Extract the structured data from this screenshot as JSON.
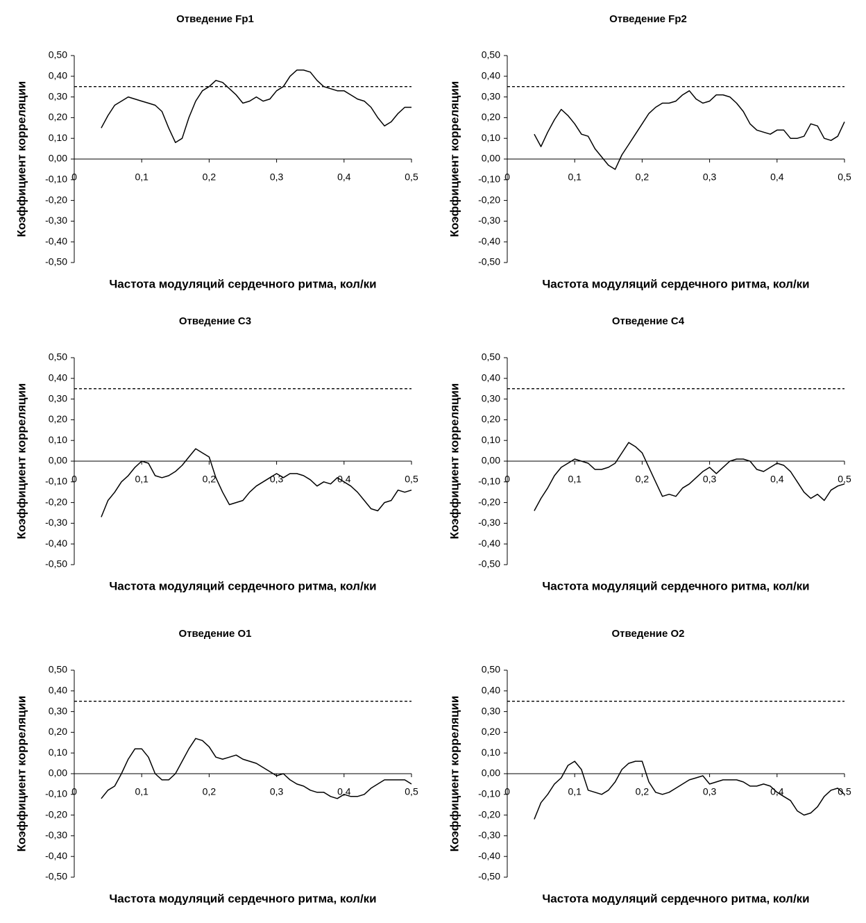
{
  "chart_data": [
    {
      "type": "line",
      "title": "Отведение Fp1",
      "xlabel": "Частота модуляций сердечного ритма, кол/ки",
      "ylabel": "Коэффициент корреляции",
      "color": "#000000",
      "reference_line": 0.35,
      "x": [
        0.04,
        0.05,
        0.06,
        0.07,
        0.08,
        0.09,
        0.1,
        0.11,
        0.12,
        0.13,
        0.14,
        0.15,
        0.16,
        0.17,
        0.18,
        0.19,
        0.2,
        0.21,
        0.22,
        0.23,
        0.24,
        0.25,
        0.26,
        0.27,
        0.28,
        0.29,
        0.3,
        0.31,
        0.32,
        0.33,
        0.34,
        0.35,
        0.36,
        0.37,
        0.38,
        0.39,
        0.4,
        0.41,
        0.42,
        0.43,
        0.44,
        0.45,
        0.46,
        0.47,
        0.48,
        0.49,
        0.5
      ],
      "values": [
        0.15,
        0.21,
        0.26,
        0.28,
        0.3,
        0.29,
        0.28,
        0.27,
        0.26,
        0.23,
        0.15,
        0.08,
        0.1,
        0.2,
        0.28,
        0.33,
        0.35,
        0.38,
        0.37,
        0.34,
        0.31,
        0.27,
        0.28,
        0.3,
        0.28,
        0.29,
        0.33,
        0.35,
        0.4,
        0.43,
        0.43,
        0.42,
        0.38,
        0.35,
        0.34,
        0.33,
        0.33,
        0.31,
        0.29,
        0.28,
        0.25,
        0.2,
        0.16,
        0.18,
        0.22,
        0.25,
        0.25
      ],
      "xlim": [
        0,
        0.5
      ],
      "ylim": [
        -0.5,
        0.5
      ],
      "xticks": [
        0,
        {
          "value": 0.1,
          "label": "0,1"
        },
        {
          "value": 0.2,
          "label": "0,2"
        },
        {
          "value": 0.3,
          "label": "0,3"
        },
        {
          "value": 0.4,
          "label": "0,4"
        },
        {
          "value": 0.5,
          "label": "0,5"
        }
      ],
      "yticks": [
        {
          "value": 0.5,
          "label": "0,50"
        },
        {
          "value": 0.4,
          "label": "0,40"
        },
        {
          "value": 0.3,
          "label": "0,30"
        },
        {
          "value": 0.2,
          "label": "0,20"
        },
        {
          "value": 0.1,
          "label": "0,10"
        },
        {
          "value": 0,
          "label": "0,00"
        },
        {
          "value": -0.1,
          "label": "-0,10"
        },
        {
          "value": -0.2,
          "label": "-0,20"
        },
        {
          "value": -0.3,
          "label": "-0,30"
        },
        {
          "value": -0.4,
          "label": "-0,40"
        },
        {
          "value": -0.5,
          "label": "-0,50"
        }
      ]
    },
    {
      "type": "line",
      "title": "Отведение Fp2",
      "xlabel": "Частота модуляций сердечного ритма, кол/ки",
      "ylabel": "Коэффициент корреляции",
      "color": "#000000",
      "reference_line": 0.35,
      "x": [
        0.04,
        0.05,
        0.06,
        0.07,
        0.08,
        0.09,
        0.1,
        0.11,
        0.12,
        0.13,
        0.14,
        0.15,
        0.16,
        0.17,
        0.18,
        0.19,
        0.2,
        0.21,
        0.22,
        0.23,
        0.24,
        0.25,
        0.26,
        0.27,
        0.28,
        0.29,
        0.3,
        0.31,
        0.32,
        0.33,
        0.34,
        0.35,
        0.36,
        0.37,
        0.38,
        0.39,
        0.4,
        0.41,
        0.42,
        0.43,
        0.44,
        0.45,
        0.46,
        0.47,
        0.48,
        0.49,
        0.5
      ],
      "values": [
        0.12,
        0.06,
        0.13,
        0.19,
        0.24,
        0.21,
        0.17,
        0.12,
        0.11,
        0.05,
        0.01,
        -0.03,
        -0.05,
        0.02,
        0.07,
        0.12,
        0.17,
        0.22,
        0.25,
        0.27,
        0.27,
        0.28,
        0.31,
        0.33,
        0.29,
        0.27,
        0.28,
        0.31,
        0.31,
        0.3,
        0.27,
        0.23,
        0.17,
        0.14,
        0.13,
        0.12,
        0.14,
        0.14,
        0.1,
        0.1,
        0.11,
        0.17,
        0.16,
        0.1,
        0.09,
        0.11,
        0.18
      ],
      "xlim": [
        0,
        0.5
      ],
      "ylim": [
        -0.5,
        0.5
      ],
      "xticks": [
        0,
        {
          "value": 0.1,
          "label": "0,1"
        },
        {
          "value": 0.2,
          "label": "0,2"
        },
        {
          "value": 0.3,
          "label": "0,3"
        },
        {
          "value": 0.4,
          "label": "0,4"
        },
        {
          "value": 0.5,
          "label": "0,5"
        }
      ],
      "yticks": [
        {
          "value": 0.5,
          "label": "0,50"
        },
        {
          "value": 0.4,
          "label": "0,40"
        },
        {
          "value": 0.3,
          "label": "0,30"
        },
        {
          "value": 0.2,
          "label": "0,20"
        },
        {
          "value": 0.1,
          "label": "0,10"
        },
        {
          "value": 0,
          "label": "0,00"
        },
        {
          "value": -0.1,
          "label": "-0,10"
        },
        {
          "value": -0.2,
          "label": "-0,20"
        },
        {
          "value": -0.3,
          "label": "-0,30"
        },
        {
          "value": -0.4,
          "label": "-0,40"
        },
        {
          "value": -0.5,
          "label": "-0,50"
        }
      ]
    },
    {
      "type": "line",
      "title": "Отведение С3",
      "xlabel": "Частота модуляций сердечного ритма, кол/ки",
      "ylabel": "Коэффициент корреляции",
      "color": "#000000",
      "reference_line": 0.35,
      "x": [
        0.04,
        0.05,
        0.06,
        0.07,
        0.08,
        0.09,
        0.1,
        0.11,
        0.12,
        0.13,
        0.14,
        0.15,
        0.16,
        0.17,
        0.18,
        0.19,
        0.2,
        0.21,
        0.22,
        0.23,
        0.24,
        0.25,
        0.26,
        0.27,
        0.28,
        0.29,
        0.3,
        0.31,
        0.32,
        0.33,
        0.34,
        0.35,
        0.36,
        0.37,
        0.38,
        0.39,
        0.4,
        0.41,
        0.42,
        0.43,
        0.44,
        0.45,
        0.46,
        0.47,
        0.48,
        0.49,
        0.5
      ],
      "values": [
        -0.27,
        -0.19,
        -0.15,
        -0.1,
        -0.07,
        -0.03,
        0.0,
        -0.01,
        -0.07,
        -0.08,
        -0.07,
        -0.05,
        -0.02,
        0.02,
        0.06,
        0.04,
        0.02,
        -0.08,
        -0.15,
        -0.21,
        -0.2,
        -0.19,
        -0.15,
        -0.12,
        -0.1,
        -0.08,
        -0.06,
        -0.08,
        -0.06,
        -0.06,
        -0.07,
        -0.09,
        -0.12,
        -0.1,
        -0.11,
        -0.08,
        -0.1,
        -0.12,
        -0.15,
        -0.19,
        -0.23,
        -0.24,
        -0.2,
        -0.19,
        -0.14,
        -0.15,
        -0.14
      ],
      "xlim": [
        0,
        0.5
      ],
      "ylim": [
        -0.5,
        0.5
      ],
      "xticks": [
        0,
        {
          "value": 0.1,
          "label": "0,1"
        },
        {
          "value": 0.2,
          "label": "0,2"
        },
        {
          "value": 0.3,
          "label": "0,3"
        },
        {
          "value": 0.4,
          "label": "0,4"
        },
        {
          "value": 0.5,
          "label": "0,5"
        }
      ],
      "yticks": [
        {
          "value": 0.5,
          "label": "0,50"
        },
        {
          "value": 0.4,
          "label": "0,40"
        },
        {
          "value": 0.3,
          "label": "0,30"
        },
        {
          "value": 0.2,
          "label": "0,20"
        },
        {
          "value": 0.1,
          "label": "0,10"
        },
        {
          "value": 0,
          "label": "0,00"
        },
        {
          "value": -0.1,
          "label": "-0,10"
        },
        {
          "value": -0.2,
          "label": "-0,20"
        },
        {
          "value": -0.3,
          "label": "-0,30"
        },
        {
          "value": -0.4,
          "label": "-0,40"
        },
        {
          "value": -0.5,
          "label": "-0,50"
        }
      ]
    },
    {
      "type": "line",
      "title": "Отведение С4",
      "xlabel": "Частота модуляций сердечного ритма, кол/ки",
      "ylabel": "Коэффициент корреляции",
      "color": "#000000",
      "reference_line": 0.35,
      "x": [
        0.04,
        0.05,
        0.06,
        0.07,
        0.08,
        0.09,
        0.1,
        0.11,
        0.12,
        0.13,
        0.14,
        0.15,
        0.16,
        0.17,
        0.18,
        0.19,
        0.2,
        0.21,
        0.22,
        0.23,
        0.24,
        0.25,
        0.26,
        0.27,
        0.28,
        0.29,
        0.3,
        0.31,
        0.32,
        0.33,
        0.34,
        0.35,
        0.36,
        0.37,
        0.38,
        0.39,
        0.4,
        0.41,
        0.42,
        0.43,
        0.44,
        0.45,
        0.46,
        0.47,
        0.48,
        0.49,
        0.5
      ],
      "values": [
        -0.24,
        -0.18,
        -0.13,
        -0.07,
        -0.03,
        -0.01,
        0.01,
        0.0,
        -0.01,
        -0.04,
        -0.04,
        -0.03,
        -0.01,
        0.04,
        0.09,
        0.07,
        0.04,
        -0.03,
        -0.1,
        -0.17,
        -0.16,
        -0.17,
        -0.13,
        -0.11,
        -0.08,
        -0.05,
        -0.03,
        -0.06,
        -0.03,
        0.0,
        0.01,
        0.01,
        0.0,
        -0.04,
        -0.05,
        -0.03,
        -0.01,
        -0.02,
        -0.05,
        -0.1,
        -0.15,
        -0.18,
        -0.16,
        -0.19,
        -0.14,
        -0.12,
        -0.11
      ],
      "xlim": [
        0,
        0.5
      ],
      "ylim": [
        -0.5,
        0.5
      ],
      "xticks": [
        0,
        {
          "value": 0.1,
          "label": "0,1"
        },
        {
          "value": 0.2,
          "label": "0,2"
        },
        {
          "value": 0.3,
          "label": "0,3"
        },
        {
          "value": 0.4,
          "label": "0,4"
        },
        {
          "value": 0.5,
          "label": "0,5"
        }
      ],
      "yticks": [
        {
          "value": 0.5,
          "label": "0,50"
        },
        {
          "value": 0.4,
          "label": "0,40"
        },
        {
          "value": 0.3,
          "label": "0,30"
        },
        {
          "value": 0.2,
          "label": "0,20"
        },
        {
          "value": 0.1,
          "label": "0,10"
        },
        {
          "value": 0,
          "label": "0,00"
        },
        {
          "value": -0.1,
          "label": "-0,10"
        },
        {
          "value": -0.2,
          "label": "-0,20"
        },
        {
          "value": -0.3,
          "label": "-0,30"
        },
        {
          "value": -0.4,
          "label": "-0,40"
        },
        {
          "value": -0.5,
          "label": "-0,50"
        }
      ]
    },
    {
      "type": "line",
      "title": "Отведение О1",
      "xlabel": "Частота модуляций сердечного ритма, кол/ки",
      "ylabel": "Коэффициент корреляции",
      "color": "#000000",
      "reference_line": 0.35,
      "x": [
        0.04,
        0.05,
        0.06,
        0.07,
        0.08,
        0.09,
        0.1,
        0.11,
        0.12,
        0.13,
        0.14,
        0.15,
        0.16,
        0.17,
        0.18,
        0.19,
        0.2,
        0.21,
        0.22,
        0.23,
        0.24,
        0.25,
        0.26,
        0.27,
        0.28,
        0.29,
        0.3,
        0.31,
        0.32,
        0.33,
        0.34,
        0.35,
        0.36,
        0.37,
        0.38,
        0.39,
        0.4,
        0.41,
        0.42,
        0.43,
        0.44,
        0.45,
        0.46,
        0.47,
        0.48,
        0.49,
        0.5
      ],
      "values": [
        -0.12,
        -0.08,
        -0.06,
        0.0,
        0.07,
        0.12,
        0.12,
        0.08,
        0.0,
        -0.03,
        -0.03,
        0.0,
        0.06,
        0.12,
        0.17,
        0.16,
        0.13,
        0.08,
        0.07,
        0.08,
        0.09,
        0.07,
        0.06,
        0.05,
        0.03,
        0.01,
        -0.01,
        0.0,
        -0.03,
        -0.05,
        -0.06,
        -0.08,
        -0.09,
        -0.09,
        -0.11,
        -0.12,
        -0.1,
        -0.11,
        -0.11,
        -0.1,
        -0.07,
        -0.05,
        -0.03,
        -0.03,
        -0.03,
        -0.03,
        -0.05
      ],
      "xlim": [
        0,
        0.5
      ],
      "ylim": [
        -0.5,
        0.5
      ],
      "xticks": [
        0,
        {
          "value": 0.1,
          "label": "0,1"
        },
        {
          "value": 0.2,
          "label": "0,2"
        },
        {
          "value": 0.3,
          "label": "0,3"
        },
        {
          "value": 0.4,
          "label": "0,4"
        },
        {
          "value": 0.5,
          "label": "0,5"
        }
      ],
      "yticks": [
        {
          "value": 0.5,
          "label": "0,50"
        },
        {
          "value": 0.4,
          "label": "0,40"
        },
        {
          "value": 0.3,
          "label": "0,30"
        },
        {
          "value": 0.2,
          "label": "0,20"
        },
        {
          "value": 0.1,
          "label": "0,10"
        },
        {
          "value": 0,
          "label": "0,00"
        },
        {
          "value": -0.1,
          "label": "-0,10"
        },
        {
          "value": -0.2,
          "label": "-0,20"
        },
        {
          "value": -0.3,
          "label": "-0,30"
        },
        {
          "value": -0.4,
          "label": "-0,40"
        },
        {
          "value": -0.5,
          "label": "-0,50"
        }
      ]
    },
    {
      "type": "line",
      "title": "Отведение О2",
      "xlabel": "Частота модуляций сердечного ритма, кол/ки",
      "ylabel": "Коэффициент корреляции",
      "color": "#000000",
      "reference_line": 0.35,
      "x": [
        0.04,
        0.05,
        0.06,
        0.07,
        0.08,
        0.09,
        0.1,
        0.11,
        0.12,
        0.13,
        0.14,
        0.15,
        0.16,
        0.17,
        0.18,
        0.19,
        0.2,
        0.21,
        0.22,
        0.23,
        0.24,
        0.25,
        0.26,
        0.27,
        0.28,
        0.29,
        0.3,
        0.31,
        0.32,
        0.33,
        0.34,
        0.35,
        0.36,
        0.37,
        0.38,
        0.39,
        0.4,
        0.41,
        0.42,
        0.43,
        0.44,
        0.45,
        0.46,
        0.47,
        0.48,
        0.49,
        0.5
      ],
      "values": [
        -0.22,
        -0.14,
        -0.1,
        -0.05,
        -0.02,
        0.04,
        0.06,
        0.02,
        -0.08,
        -0.09,
        -0.1,
        -0.08,
        -0.04,
        0.02,
        0.05,
        0.06,
        0.06,
        -0.04,
        -0.09,
        -0.1,
        -0.09,
        -0.07,
        -0.05,
        -0.03,
        -0.02,
        -0.01,
        -0.05,
        -0.04,
        -0.03,
        -0.03,
        -0.03,
        -0.04,
        -0.06,
        -0.06,
        -0.05,
        -0.06,
        -0.09,
        -0.11,
        -0.13,
        -0.18,
        -0.2,
        -0.19,
        -0.16,
        -0.11,
        -0.08,
        -0.07,
        -0.1
      ],
      "xlim": [
        0,
        0.5
      ],
      "ylim": [
        -0.5,
        0.5
      ],
      "xticks": [
        0,
        {
          "value": 0.1,
          "label": "0,1"
        },
        {
          "value": 0.2,
          "label": "0,2"
        },
        {
          "value": 0.3,
          "label": "0,3"
        },
        {
          "value": 0.4,
          "label": "0,4"
        },
        {
          "value": 0.5,
          "label": "0,5"
        }
      ],
      "yticks": [
        {
          "value": 0.5,
          "label": "0,50"
        },
        {
          "value": 0.4,
          "label": "0,40"
        },
        {
          "value": 0.3,
          "label": "0,30"
        },
        {
          "value": 0.2,
          "label": "0,20"
        },
        {
          "value": 0.1,
          "label": "0,10"
        },
        {
          "value": 0,
          "label": "0,00"
        },
        {
          "value": -0.1,
          "label": "-0,10"
        },
        {
          "value": -0.2,
          "label": "-0,20"
        },
        {
          "value": -0.3,
          "label": "-0,30"
        },
        {
          "value": -0.4,
          "label": "-0,40"
        },
        {
          "value": -0.5,
          "label": "-0,50"
        }
      ]
    }
  ]
}
